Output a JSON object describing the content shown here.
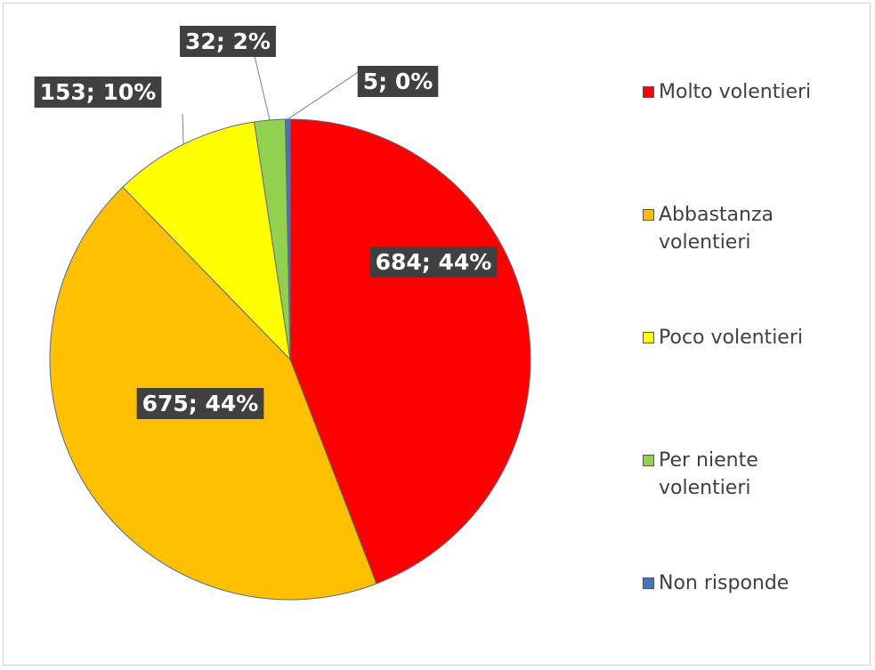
{
  "chart_data": {
    "type": "pie",
    "categories": [
      "Molto volentieri",
      "Abbastanza volentieri",
      "Poco volentieri",
      "Per niente volentieri",
      "Non risponde"
    ],
    "values": [
      684,
      675,
      153,
      32,
      5
    ],
    "value_labels": [
      "684; 44%",
      "675; 44%",
      "153; 10%",
      "32; 2%",
      "5; 0%"
    ],
    "colors": [
      "#ff0000",
      "#ffc000",
      "#ffff00",
      "#92d050",
      "#4472c4"
    ],
    "legend": "right"
  }
}
